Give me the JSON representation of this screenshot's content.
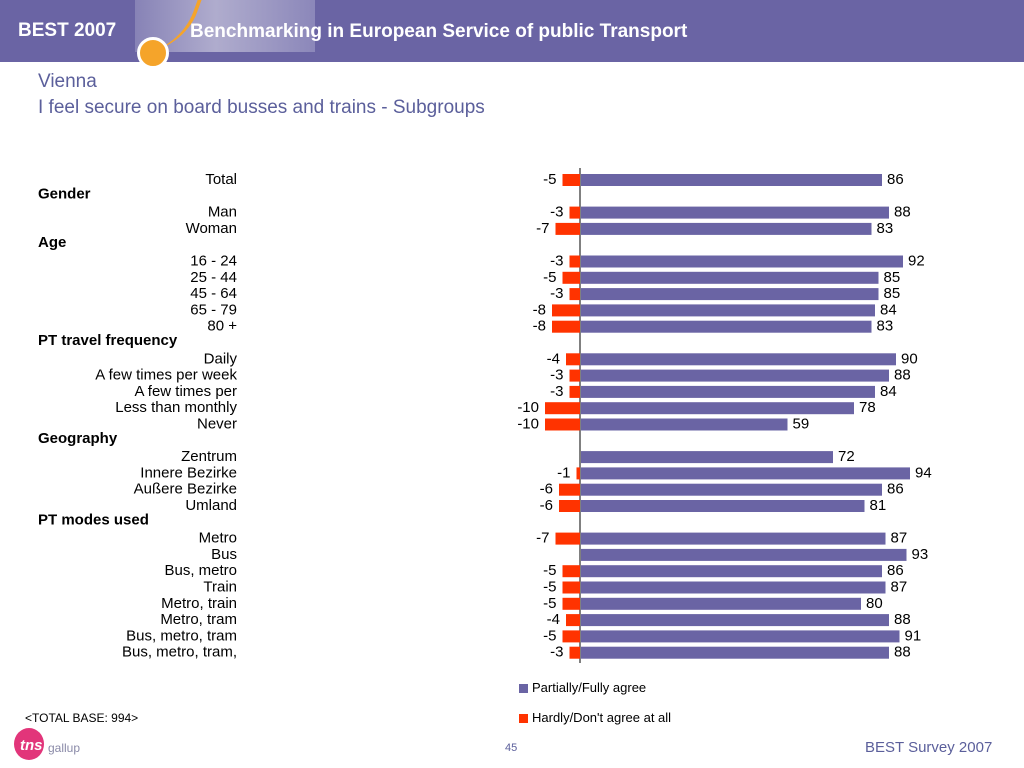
{
  "header": {
    "brand": "BEST 2007",
    "headline": "Benchmarking in European Service of public Transport"
  },
  "title": {
    "line1": "Vienna",
    "line2": "I feel secure on board busses and trains - Subgroups"
  },
  "legend": {
    "positive_label": "Partially/Fully agree",
    "negative_label": "Hardly/Don't agree at all"
  },
  "colors": {
    "positive": "#6a64a4",
    "negative": "#ff3300",
    "banner": "#6a64a4",
    "accent_orange": "#f5a42a",
    "title_text": "#5b5f9b"
  },
  "footer": {
    "base_note": "<TOTAL BASE: 994>",
    "logo_text": "tns",
    "logo_sub": "gallup",
    "page_number": "45",
    "survey": "BEST Survey 2007"
  },
  "chart_data": {
    "type": "bar",
    "orientation": "horizontal",
    "diverging": true,
    "series": [
      {
        "name": "Partially/Fully agree",
        "key": "agree"
      },
      {
        "name": "Hardly/Don't agree at all",
        "key": "disagree"
      }
    ],
    "rows": [
      {
        "kind": "item",
        "label": "Total",
        "disagree": -5,
        "agree": 86
      },
      {
        "kind": "group",
        "label": "Gender"
      },
      {
        "kind": "item",
        "label": "Man",
        "disagree": -3,
        "agree": 88
      },
      {
        "kind": "item",
        "label": "Woman",
        "disagree": -7,
        "agree": 83
      },
      {
        "kind": "group",
        "label": "Age"
      },
      {
        "kind": "item",
        "label": "16 - 24",
        "disagree": -3,
        "agree": 92
      },
      {
        "kind": "item",
        "label": "25 - 44",
        "disagree": -5,
        "agree": 85
      },
      {
        "kind": "item",
        "label": "45 - 64",
        "disagree": -3,
        "agree": 85
      },
      {
        "kind": "item",
        "label": "65 - 79",
        "disagree": -8,
        "agree": 84
      },
      {
        "kind": "item",
        "label": "80 +",
        "disagree": -8,
        "agree": 83
      },
      {
        "kind": "group",
        "label": "PT travel frequency"
      },
      {
        "kind": "item",
        "label": "Daily",
        "disagree": -4,
        "agree": 90
      },
      {
        "kind": "item",
        "label": "A few times per week",
        "disagree": -3,
        "agree": 88
      },
      {
        "kind": "item",
        "label": "A few times per",
        "disagree": -3,
        "agree": 84
      },
      {
        "kind": "item",
        "label": "Less than monthly",
        "disagree": -10,
        "agree": 78
      },
      {
        "kind": "item",
        "label": "Never",
        "disagree": -10,
        "agree": 59
      },
      {
        "kind": "group",
        "label": "Geography"
      },
      {
        "kind": "item",
        "label": "Zentrum",
        "disagree": null,
        "agree": 72
      },
      {
        "kind": "item",
        "label": "Innere Bezirke",
        "disagree": -1,
        "agree": 94
      },
      {
        "kind": "item",
        "label": "Außere Bezirke",
        "disagree": -6,
        "agree": 86
      },
      {
        "kind": "item",
        "label": "Umland",
        "disagree": -6,
        "agree": 81
      },
      {
        "kind": "group",
        "label": "PT modes used"
      },
      {
        "kind": "item",
        "label": "Metro",
        "disagree": -7,
        "agree": 87
      },
      {
        "kind": "item",
        "label": "Bus",
        "disagree": null,
        "agree": 93
      },
      {
        "kind": "item",
        "label": "Bus, metro",
        "disagree": -5,
        "agree": 86
      },
      {
        "kind": "item",
        "label": "Train",
        "disagree": -5,
        "agree": 87
      },
      {
        "kind": "item",
        "label": "Metro, train",
        "disagree": -5,
        "agree": 80
      },
      {
        "kind": "item",
        "label": "Metro, tram",
        "disagree": -4,
        "agree": 88
      },
      {
        "kind": "item",
        "label": "Bus, metro, tram",
        "disagree": -5,
        "agree": 91
      },
      {
        "kind": "item",
        "label": "Bus, metro, tram,",
        "disagree": -3,
        "agree": 88
      }
    ],
    "xlim": [
      -10,
      94
    ],
    "grid": false,
    "legend_position": "bottom-center"
  }
}
